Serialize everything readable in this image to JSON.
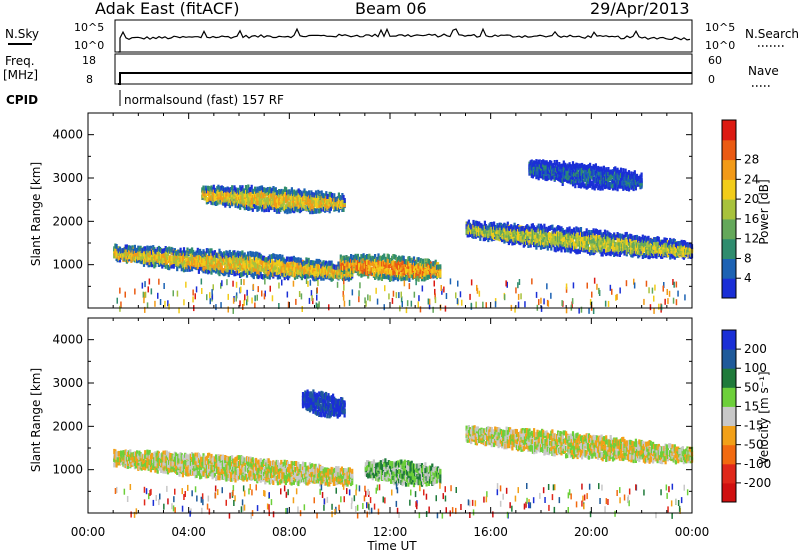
{
  "header": {
    "station": "Adak East (fitACF)",
    "beam": "Beam 06",
    "date": "29/Apr/2013"
  },
  "status_panels": {
    "nsky_label": "N.Sky",
    "nsky_ticks": [
      "10^5",
      "10^0"
    ],
    "nsearch_label": "N.Search",
    "nsearch_ticks": [
      "10^5",
      "10^0"
    ],
    "freq_label": "Freq.",
    "freq_unit": "[MHz]",
    "freq_ticks": [
      "18",
      "8"
    ],
    "nave_label": "Nave",
    "nave_ticks": [
      "60",
      "0"
    ],
    "cpid_label": "CPID",
    "cpid_text": "normalsound (fast) 157 RF"
  },
  "x_axis": {
    "label": "Time UT",
    "ticks": [
      "00:00",
      "04:00",
      "08:00",
      "12:00",
      "16:00",
      "20:00",
      "00:00"
    ]
  },
  "chart_data": [
    {
      "type": "heatmap",
      "name": "power",
      "ylabel": "Slant Range [km]",
      "yticks": [
        "1000",
        "2000",
        "3000",
        "4000"
      ],
      "ylim": [
        0,
        4500
      ],
      "xlim_hours": [
        0,
        24
      ],
      "colorbar": {
        "label": "Power [dB]",
        "ticks": [
          "4",
          "8",
          "12",
          "16",
          "20",
          "24",
          "28"
        ],
        "colors": [
          "#1a2fd6",
          "#1c62b3",
          "#2f8c6e",
          "#64a85a",
          "#a8c23c",
          "#f2cc1a",
          "#f29a18",
          "#ea5a12",
          "#dc1a12"
        ]
      },
      "bands": [
        {
          "t_start": 1.0,
          "t_end": 10.5,
          "r_start": 1350,
          "r_end": 900,
          "level": 5
        },
        {
          "t_start": 4.5,
          "t_end": 10.2,
          "r_start": 2700,
          "r_end": 2500,
          "level": 5
        },
        {
          "t_start": 10.0,
          "t_end": 14.0,
          "r_start": 1100,
          "r_end": 950,
          "level": 6
        },
        {
          "t_start": 15.0,
          "t_end": 24.0,
          "r_start": 1900,
          "r_end": 1400,
          "level": 4
        },
        {
          "t_start": 17.5,
          "t_end": 22.0,
          "r_start": 3300,
          "r_end": 3000,
          "level": 1
        }
      ]
    },
    {
      "type": "heatmap",
      "name": "velocity",
      "ylabel": "Slant Range [km]",
      "yticks": [
        "1000",
        "2000",
        "3000",
        "4000"
      ],
      "ylim": [
        0,
        4500
      ],
      "xlim_hours": [
        0,
        24
      ],
      "colorbar": {
        "label": "Velocity [m s⁻¹]",
        "ticks": [
          "200",
          "100",
          "50",
          "15",
          "-15",
          "-50",
          "-100",
          "-200"
        ],
        "colors": [
          "#1a2fd6",
          "#1f5a9a",
          "#1f7a3a",
          "#6dcf3a",
          "#c8c8c8",
          "#f2a018",
          "#f26a10",
          "#e0281a",
          "#d01010"
        ]
      },
      "bands": [
        {
          "t_start": 1.0,
          "t_end": 10.5,
          "r_start": 1350,
          "r_end": 900,
          "level": 4
        },
        {
          "t_start": 8.5,
          "t_end": 10.2,
          "r_start": 2700,
          "r_end": 2500,
          "level": 0
        },
        {
          "t_start": 11.0,
          "t_end": 14.0,
          "r_start": 1100,
          "r_end": 950,
          "level": 3
        },
        {
          "t_start": 15.0,
          "t_end": 24.0,
          "r_start": 1900,
          "r_end": 1400,
          "level": 4
        }
      ]
    }
  ]
}
